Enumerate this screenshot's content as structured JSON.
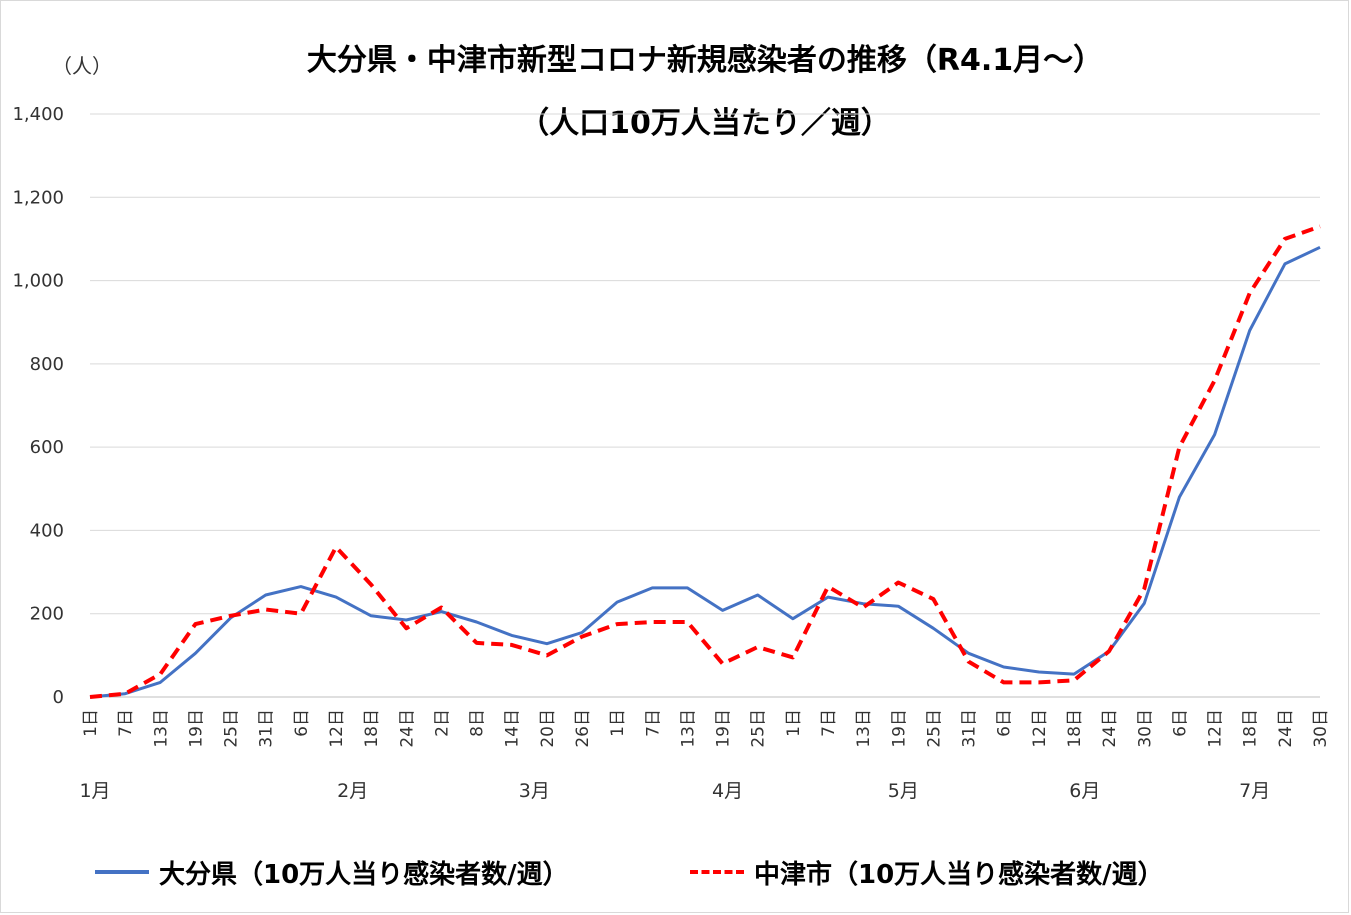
{
  "chart_data": {
    "type": "line",
    "title": "大分県・中津市新型コロナ新規感染者の推移（R4.1月〜）",
    "subtitle": "（人口10万人当たり／週）",
    "ylabel": "（人）",
    "ylim": [
      0,
      1400
    ],
    "yticks": [
      0,
      200,
      400,
      600,
      800,
      1000,
      1200,
      1400
    ],
    "ytick_labels": [
      "0",
      "200",
      "400",
      "600",
      "800",
      "1,000",
      "1,200",
      "1,400"
    ],
    "grid": true,
    "legend_position": "bottom",
    "x_day_labels": [
      "1日",
      "7日",
      "13日",
      "19日",
      "25日",
      "31日",
      "6日",
      "12日",
      "18日",
      "24日",
      "2日",
      "8日",
      "14日",
      "20日",
      "26日",
      "1日",
      "7日",
      "13日",
      "19日",
      "25日",
      "1日",
      "7日",
      "13日",
      "19日",
      "25日",
      "31日",
      "6日",
      "12日",
      "18日",
      "24日",
      "30日",
      "6日",
      "12日",
      "18日",
      "24日",
      "30日"
    ],
    "x_month_labels": [
      {
        "label": "1月",
        "day": 1
      },
      {
        "label": "2月",
        "day": 45
      },
      {
        "label": "3月",
        "day": 76
      },
      {
        "label": "4月",
        "day": 109
      },
      {
        "label": "5月",
        "day": 139
      },
      {
        "label": "6月",
        "day": 170
      },
      {
        "label": "7月",
        "day": 199
      }
    ],
    "x": [
      1,
      7,
      13,
      19,
      25,
      31,
      37,
      43,
      49,
      55,
      61,
      67,
      73,
      79,
      85,
      91,
      97,
      103,
      109,
      115,
      121,
      127,
      133,
      139,
      145,
      151,
      157,
      163,
      169,
      175,
      181,
      187,
      193,
      199,
      205,
      211
    ],
    "series": [
      {
        "name": "大分県（10万人当り感染者数/週）",
        "color": "#4472c4",
        "dash": false,
        "values": [
          0,
          8,
          35,
          105,
          190,
          245,
          265,
          240,
          195,
          185,
          205,
          180,
          148,
          128,
          155,
          228,
          262,
          262,
          208,
          245,
          188,
          240,
          224,
          218,
          165,
          105,
          72,
          60,
          55,
          110,
          225,
          480,
          630,
          880,
          1040,
          1080
        ]
      },
      {
        "name": "中津市（10万人当り感染者数/週）",
        "color": "#ff0000",
        "dash": true,
        "values": [
          0,
          8,
          55,
          175,
          195,
          210,
          200,
          360,
          270,
          165,
          215,
          130,
          125,
          100,
          145,
          175,
          180,
          180,
          80,
          120,
          95,
          265,
          215,
          275,
          235,
          85,
          35,
          35,
          40,
          110,
          260,
          600,
          760,
          970,
          1100,
          1130
        ]
      }
    ]
  }
}
